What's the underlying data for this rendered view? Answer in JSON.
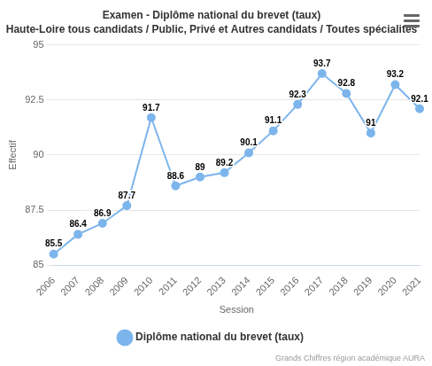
{
  "chart_data": {
    "type": "line",
    "title": "Examen - Diplôme national du brevet (taux)",
    "subtitle": "Haute-Loire tous candidats / Public, Privé et Autres candidats / Toutes spécialités",
    "x_label": "Session",
    "y_label": "Effectif",
    "annotations": [
      "Grands Chiffres région académique AURA"
    ],
    "categories": [
      "2006",
      "2007",
      "2008",
      "2009",
      "2010",
      "2011",
      "2012",
      "2013",
      "2014",
      "2015",
      "2016",
      "2017",
      "2018",
      "2019",
      "2020",
      "2021"
    ],
    "series": [
      {
        "name": "Diplôme national du brevet (taux)",
        "color": "#7cb5ec",
        "marker": "circle",
        "values": [
          85.5,
          86.4,
          86.9,
          87.7,
          91.7,
          88.6,
          89,
          89.2,
          90.1,
          91.1,
          92.3,
          93.7,
          92.8,
          91,
          93.2,
          92.1
        ]
      }
    ],
    "ylim": [
      85,
      95
    ],
    "yticks": [
      85,
      87.5,
      90,
      92.5,
      95
    ],
    "grid": true,
    "legend": "bottom",
    "data_labels": true
  }
}
